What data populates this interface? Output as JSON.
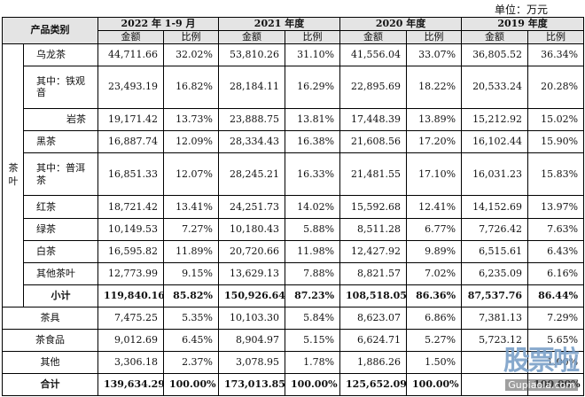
{
  "unit_label": "单位：万元",
  "header": {
    "category": "产品类别",
    "periods": [
      "2022 年 1-9 月",
      "2021 年度",
      "2020 年度",
      "2019 年度"
    ],
    "amount": "金额",
    "ratio": "比例"
  },
  "tea_group_label": "茶叶",
  "tea_rows": [
    {
      "name": "乌龙茶",
      "v": [
        "44,711.66",
        "32.02%",
        "53,810.26",
        "31.10%",
        "41,556.04",
        "33.07%",
        "36,805.52",
        "36.34%"
      ]
    },
    {
      "name": "其中：铁观音",
      "v": [
        "23,493.19",
        "16.82%",
        "28,184.11",
        "16.29%",
        "22,895.69",
        "18.22%",
        "20,533.24",
        "20.28%"
      ]
    },
    {
      "name": "岩茶",
      "v": [
        "19,171.42",
        "13.73%",
        "23,888.75",
        "13.81%",
        "17,448.39",
        "13.89%",
        "15,212.92",
        "15.02%"
      ]
    },
    {
      "name": "黑茶",
      "v": [
        "16,887.74",
        "12.09%",
        "28,334.43",
        "16.38%",
        "21,608.56",
        "17.20%",
        "16,102.44",
        "15.90%"
      ]
    },
    {
      "name": "其中：普洱茶",
      "v": [
        "16,851.33",
        "12.07%",
        "28,245.21",
        "16.33%",
        "21,481.55",
        "17.10%",
        "16,031.23",
        "15.83%"
      ]
    },
    {
      "name": "红茶",
      "v": [
        "18,721.42",
        "13.41%",
        "24,251.73",
        "14.02%",
        "15,592.68",
        "12.41%",
        "14,152.69",
        "13.97%"
      ]
    },
    {
      "name": "绿茶",
      "v": [
        "10,149.53",
        "7.27%",
        "10,180.43",
        "5.88%",
        "8,511.28",
        "6.77%",
        "7,726.42",
        "7.63%"
      ]
    },
    {
      "name": "白茶",
      "v": [
        "16,595.82",
        "11.89%",
        "20,720.66",
        "11.98%",
        "12,427.92",
        "9.89%",
        "6,515.61",
        "6.43%"
      ]
    },
    {
      "name": "其他茶叶",
      "v": [
        "12,773.99",
        "9.15%",
        "13,629.13",
        "7.88%",
        "8,821.57",
        "7.02%",
        "6,235.09",
        "6.16%"
      ]
    }
  ],
  "subtotal": {
    "name": "小计",
    "v": [
      "119,840.16",
      "85.82%",
      "150,926.64",
      "87.23%",
      "108,518.05",
      "86.36%",
      "87,537.76",
      "86.44%"
    ]
  },
  "other_rows": [
    {
      "name": "茶具",
      "v": [
        "7,475.25",
        "5.35%",
        "10,103.30",
        "5.84%",
        "8,623.07",
        "6.86%",
        "7,381.13",
        "7.29%"
      ]
    },
    {
      "name": "茶食品",
      "v": [
        "9,012.69",
        "6.45%",
        "8,904.97",
        "5.15%",
        "6,624.71",
        "5.27%",
        "5,723.12",
        "5.65%"
      ]
    },
    {
      "name": "其他",
      "v": [
        "3,306.18",
        "2.37%",
        "3,078.95",
        "1.78%",
        "1,886.26",
        "1.50%",
        "",
        "1.00%"
      ]
    }
  ],
  "total": {
    "name": "合计",
    "v": [
      "139,634.29",
      "100.00%",
      "173,013.85",
      "100.00%",
      "125,652.09",
      "100.00%",
      "",
      "100.00%"
    ]
  },
  "watermark": {
    "logo": "股票啦",
    "url": "Gupiaola.com"
  }
}
